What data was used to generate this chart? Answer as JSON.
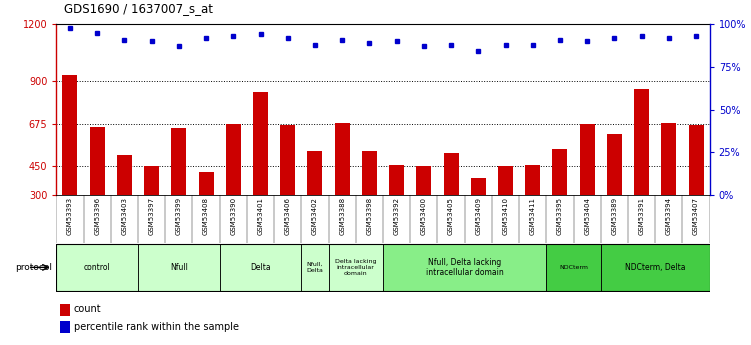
{
  "title": "GDS1690 / 1637007_s_at",
  "samples": [
    "GSM53393",
    "GSM53396",
    "GSM53403",
    "GSM53397",
    "GSM53399",
    "GSM53408",
    "GSM53390",
    "GSM53401",
    "GSM53406",
    "GSM53402",
    "GSM53388",
    "GSM53398",
    "GSM53392",
    "GSM53400",
    "GSM53405",
    "GSM53409",
    "GSM53410",
    "GSM53411",
    "GSM53395",
    "GSM53404",
    "GSM53389",
    "GSM53391",
    "GSM53394",
    "GSM53407"
  ],
  "counts": [
    930,
    660,
    510,
    450,
    655,
    420,
    675,
    840,
    670,
    530,
    680,
    530,
    460,
    455,
    520,
    390,
    455,
    460,
    540,
    675,
    620,
    860,
    680,
    670
  ],
  "percentile_ranks": [
    98,
    95,
    91,
    90,
    87,
    92,
    93,
    94,
    92,
    88,
    91,
    89,
    90,
    87,
    88,
    84,
    88,
    88,
    91,
    90,
    92,
    93,
    92,
    93
  ],
  "ylim_left": [
    300,
    1200
  ],
  "ylim_right": [
    0,
    100
  ],
  "yticks_left": [
    300,
    450,
    675,
    900,
    1200
  ],
  "yticks_right": [
    0,
    25,
    50,
    75,
    100
  ],
  "bar_color": "#cc0000",
  "dot_color": "#0000cc",
  "bg_color": "#ffffff",
  "plot_bg_color": "#ffffff",
  "tick_strip_color": "#c8c8c8",
  "protocol_groups": [
    {
      "label": "control",
      "start": 0,
      "end": 3,
      "color": "#ccffcc"
    },
    {
      "label": "Nfull",
      "start": 3,
      "end": 6,
      "color": "#ccffcc"
    },
    {
      "label": "Delta",
      "start": 6,
      "end": 9,
      "color": "#ccffcc"
    },
    {
      "label": "Nfull,\nDelta",
      "start": 9,
      "end": 10,
      "color": "#ccffcc"
    },
    {
      "label": "Delta lacking\nintracellular\ndomain",
      "start": 10,
      "end": 12,
      "color": "#ccffcc"
    },
    {
      "label": "Nfull, Delta lacking\nintracellular domain",
      "start": 12,
      "end": 18,
      "color": "#88ee88"
    },
    {
      "label": "NDCterm",
      "start": 18,
      "end": 20,
      "color": "#44cc44"
    },
    {
      "label": "NDCterm, Delta",
      "start": 20,
      "end": 24,
      "color": "#44cc44"
    }
  ]
}
